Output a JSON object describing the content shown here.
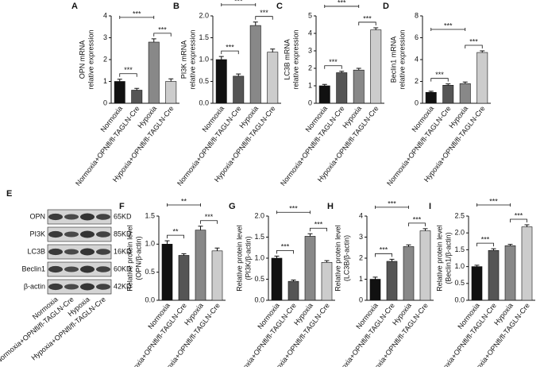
{
  "chart_data": [
    {
      "type": "bar",
      "panel": "A",
      "ylabel": [
        "OPN mRNA",
        "relative expression"
      ],
      "categories": [
        "Normoxia",
        "Normoxia+OPNfl/fl-TAGLN-Cre",
        "Hypoxia",
        "Hypoxia+OPNfl/fl-TAGLN-Cre"
      ],
      "values": [
        1.0,
        0.6,
        2.8,
        1.0
      ],
      "errors": [
        0.1,
        0.08,
        0.15,
        0.12
      ],
      "colors": [
        "#111111",
        "#555555",
        "#888888",
        "#cccccc"
      ],
      "ylim": [
        0,
        4
      ],
      "yticks": [
        0,
        1,
        2,
        3,
        4
      ],
      "annotations": [
        {
          "label": "***",
          "between": [
            "Normoxia",
            "Normoxia+OPNfl/fl-TAGLN-Cre"
          ]
        },
        {
          "label": "***",
          "between": [
            "Hypoxia",
            "Hypoxia+OPNfl/fl-TAGLN-Cre"
          ]
        },
        {
          "label": "***",
          "between": [
            "Normoxia",
            "Hypoxia"
          ]
        }
      ]
    },
    {
      "type": "bar",
      "panel": "B",
      "ylabel": [
        "PI3K mRNA",
        "relative expression"
      ],
      "categories": [
        "Normoxia",
        "Normoxia+OPNfl/fl-TAGLN-Cre",
        "Hypoxia",
        "Hypoxia+OPNfl/fl-TAGLN-Cre"
      ],
      "values": [
        1.0,
        0.62,
        1.78,
        1.17
      ],
      "errors": [
        0.07,
        0.05,
        0.08,
        0.07
      ],
      "colors": [
        "#111111",
        "#555555",
        "#888888",
        "#cccccc"
      ],
      "ylim": [
        0,
        2
      ],
      "yticks": [
        {
          "value": 0,
          "label": "0.0"
        },
        {
          "value": 0.5,
          "label": "0.5"
        },
        {
          "value": 1,
          "label": "1.0"
        },
        {
          "value": 1.5,
          "label": "1.5"
        },
        {
          "value": 2,
          "label": "2.0"
        }
      ],
      "annotations": [
        {
          "label": "***",
          "between": [
            "Normoxia",
            "Normoxia+OPNfl/fl-TAGLN-Cre"
          ]
        },
        {
          "label": "***",
          "between": [
            "Hypoxia",
            "Hypoxia+OPNfl/fl-TAGLN-Cre"
          ]
        },
        {
          "label": "***",
          "between": [
            "Normoxia",
            "Hypoxia"
          ]
        }
      ]
    },
    {
      "type": "bar",
      "panel": "C",
      "ylabel": [
        "LC3B mRNA",
        "relative expression"
      ],
      "categories": [
        "Normoxia",
        "Normoxia+OPNfl/fl-TAGLN-Cre",
        "Hypoxia",
        "Hypoxia+OPNfl/fl-TAGLN-Cre"
      ],
      "values": [
        1.0,
        1.75,
        1.9,
        4.2
      ],
      "errors": [
        0.08,
        0.08,
        0.1,
        0.12
      ],
      "colors": [
        "#111111",
        "#555555",
        "#888888",
        "#cccccc"
      ],
      "ylim": [
        0,
        5
      ],
      "yticks": [
        0,
        1,
        2,
        3,
        4,
        5
      ],
      "annotations": [
        {
          "label": "***",
          "between": [
            "Normoxia",
            "Normoxia+OPNfl/fl-TAGLN-Cre"
          ]
        },
        {
          "label": "***",
          "between": [
            "Hypoxia",
            "Hypoxia+OPNfl/fl-TAGLN-Cre"
          ]
        },
        {
          "label": "***",
          "between": [
            "Normoxia",
            "Hypoxia"
          ]
        }
      ]
    },
    {
      "type": "bar",
      "panel": "D",
      "ylabel": [
        "Beclin1 mRNA",
        "relative expression"
      ],
      "categories": [
        "Normoxia",
        "Normoxia+OPNfl/fl-TAGLN-Cre",
        "Hypoxia",
        "Hypoxia+OPNfl/fl-TAGLN-Cre"
      ],
      "values": [
        1.0,
        1.65,
        1.8,
        4.65
      ],
      "errors": [
        0.1,
        0.12,
        0.15,
        0.15
      ],
      "colors": [
        "#111111",
        "#555555",
        "#888888",
        "#cccccc"
      ],
      "ylim": [
        0,
        8
      ],
      "yticks": [
        0,
        2,
        4,
        6,
        8
      ],
      "annotations": [
        {
          "label": "***",
          "between": [
            "Normoxia",
            "Normoxia+OPNfl/fl-TAGLN-Cre"
          ]
        },
        {
          "label": "***",
          "between": [
            "Hypoxia",
            "Hypoxia+OPNfl/fl-TAGLN-Cre"
          ]
        },
        {
          "label": "***",
          "between": [
            "Normoxia",
            "Hypoxia"
          ]
        }
      ]
    },
    {
      "type": "bar",
      "panel": "F",
      "ylabel": [
        "Relative protein level",
        "(OPN/β-actin)"
      ],
      "categories": [
        "Normoxia",
        "Normoxia+OPNfl/fl-TAGLN-Cre",
        "Hypoxia",
        "Hypoxia+OPNfl/fl-TAGLN-Cre"
      ],
      "values": [
        1.0,
        0.8,
        1.25,
        0.88
      ],
      "errors": [
        0.06,
        0.03,
        0.07,
        0.05
      ],
      "colors": [
        "#111111",
        "#555555",
        "#888888",
        "#cccccc"
      ],
      "ylim": [
        0,
        1.5
      ],
      "yticks": [
        {
          "value": 0,
          "label": "0.0"
        },
        {
          "value": 0.5,
          "label": "0.5"
        },
        {
          "value": 1,
          "label": "1.0"
        },
        {
          "value": 1.5,
          "label": "1.5"
        }
      ],
      "annotations": [
        {
          "label": "**",
          "between": [
            "Normoxia",
            "Normoxia+OPNfl/fl-TAGLN-Cre"
          ]
        },
        {
          "label": "***",
          "between": [
            "Hypoxia",
            "Hypoxia+OPNfl/fl-TAGLN-Cre"
          ]
        },
        {
          "label": "**",
          "between": [
            "Normoxia",
            "Hypoxia"
          ]
        }
      ]
    },
    {
      "type": "bar",
      "panel": "G",
      "ylabel": [
        "Relative protein level",
        "(PI3K/β-actin)"
      ],
      "categories": [
        "Normoxia",
        "Normoxia+OPNfl/fl-TAGLN-Cre",
        "Hypoxia",
        "Hypoxia+OPNfl/fl-TAGLN-Cre"
      ],
      "values": [
        1.0,
        0.45,
        1.52,
        0.9
      ],
      "errors": [
        0.05,
        0.03,
        0.06,
        0.04
      ],
      "colors": [
        "#111111",
        "#555555",
        "#888888",
        "#cccccc"
      ],
      "ylim": [
        0,
        2
      ],
      "yticks": [
        {
          "value": 0,
          "label": "0.0"
        },
        {
          "value": 0.5,
          "label": "0.5"
        },
        {
          "value": 1,
          "label": "1.0"
        },
        {
          "value": 1.5,
          "label": "1.5"
        },
        {
          "value": 2,
          "label": "2.0"
        }
      ],
      "annotations": [
        {
          "label": "***",
          "between": [
            "Normoxia",
            "Normoxia+OPNfl/fl-TAGLN-Cre"
          ]
        },
        {
          "label": "***",
          "between": [
            "Hypoxia",
            "Hypoxia+OPNfl/fl-TAGLN-Cre"
          ]
        },
        {
          "label": "***",
          "between": [
            "Normoxia",
            "Hypoxia"
          ]
        }
      ]
    },
    {
      "type": "bar",
      "panel": "H",
      "ylabel": [
        "Relative protein level",
        "(LC3B/β-actin)"
      ],
      "categories": [
        "Normoxia",
        "Normoxia+OPNfl/fl-TAGLN-Cre",
        "Hypoxia",
        "Hypoxia+OPNfl/fl-TAGLN-Cre"
      ],
      "values": [
        1.0,
        1.85,
        2.55,
        3.3
      ],
      "errors": [
        0.1,
        0.1,
        0.08,
        0.1
      ],
      "colors": [
        "#111111",
        "#555555",
        "#888888",
        "#cccccc"
      ],
      "ylim": [
        0,
        4
      ],
      "yticks": [
        0,
        1,
        2,
        3,
        4
      ],
      "annotations": [
        {
          "label": "***",
          "between": [
            "Normoxia",
            "Normoxia+OPNfl/fl-TAGLN-Cre"
          ]
        },
        {
          "label": "***",
          "between": [
            "Hypoxia",
            "Hypoxia+OPNfl/fl-TAGLN-Cre"
          ]
        },
        {
          "label": "***",
          "between": [
            "Normoxia",
            "Hypoxia"
          ]
        }
      ]
    },
    {
      "type": "bar",
      "panel": "I",
      "ylabel": [
        "Relative protein level",
        "(Beclin1/β-actin)"
      ],
      "categories": [
        "Normoxia",
        "Normoxia+OPNfl/fl-TAGLN-Cre",
        "Hypoxia",
        "Hypoxia+OPNfl/fl-TAGLN-Cre"
      ],
      "values": [
        1.0,
        1.48,
        1.62,
        2.18
      ],
      "errors": [
        0.04,
        0.05,
        0.04,
        0.06
      ],
      "colors": [
        "#111111",
        "#555555",
        "#888888",
        "#cccccc"
      ],
      "ylim": [
        0,
        2.5
      ],
      "yticks": [
        {
          "value": 0,
          "label": "0.0"
        },
        {
          "value": 0.5,
          "label": "0.5"
        },
        {
          "value": 1,
          "label": "1.0"
        },
        {
          "value": 1.5,
          "label": "1.5"
        },
        {
          "value": 2,
          "label": "2.0"
        },
        {
          "value": 2.5,
          "label": "2.5"
        }
      ],
      "annotations": [
        {
          "label": "***",
          "between": [
            "Normoxia",
            "Normoxia+OPNfl/fl-TAGLN-Cre"
          ]
        },
        {
          "label": "***",
          "between": [
            "Hypoxia",
            "Hypoxia+OPNfl/fl-TAGLN-Cre"
          ]
        },
        {
          "label": "***",
          "between": [
            "Normoxia",
            "Hypoxia"
          ]
        }
      ]
    }
  ],
  "blot": {
    "panel": "E",
    "rows": [
      {
        "protein": "OPN",
        "size": "65KD"
      },
      {
        "protein": "PI3K",
        "size": "85KD"
      },
      {
        "protein": "LC3B",
        "size": "16KD"
      },
      {
        "protein": "Beclin1",
        "size": "60KD"
      },
      {
        "protein": "β-actin",
        "size": "42KD"
      }
    ],
    "categories": [
      "Normoxia",
      "Normoxia+OPNfl/fl-TAGLN-Cre",
      "Hypoxia",
      "Hypoxia+OPNfl/fl-TAGLN-Cre"
    ]
  }
}
